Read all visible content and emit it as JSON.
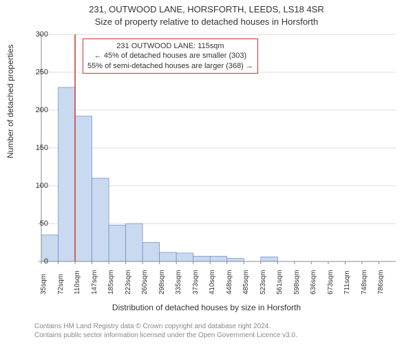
{
  "title_line1": "231, OUTWOOD LANE, HORSFORTH, LEEDS, LS18 4SR",
  "title_line2": "Size of property relative to detached houses in Horsforth",
  "ylabel": "Number of detached properties",
  "xlabel": "Distribution of detached houses by size in Horsforth",
  "attribution_line1": "Contains HM Land Registry data © Crown copyright and database right 2024.",
  "attribution_line2": "Contains public sector information licensed under the Open Government Licence v3.0.",
  "annotation": {
    "line1": "231 OUTWOOD LANE: 115sqm",
    "line2": "← 45% of detached houses are smaller (303)",
    "line3": "55% of semi-detached houses are larger (368) →"
  },
  "chart": {
    "type": "histogram",
    "ylim": [
      0,
      300
    ],
    "yticks": [
      0,
      50,
      100,
      150,
      200,
      250,
      300
    ],
    "xticks": [
      "35sqm",
      "72sqm",
      "110sqm",
      "147sqm",
      "185sqm",
      "223sqm",
      "260sqm",
      "298sqm",
      "335sqm",
      "373sqm",
      "410sqm",
      "448sqm",
      "485sqm",
      "523sqm",
      "561sqm",
      "598sqm",
      "636sqm",
      "673sqm",
      "711sqm",
      "748sqm",
      "786sqm"
    ],
    "values": [
      35,
      230,
      192,
      110,
      48,
      50,
      25,
      12,
      11,
      7,
      7,
      4,
      0,
      6,
      0,
      0,
      0,
      0,
      0,
      0,
      0
    ],
    "bar_fill": "#c9d9f0",
    "bar_stroke": "#6b88c4",
    "highlight_line_color": "#cc3333",
    "highlight_index": 2,
    "axis_color": "#888888",
    "grid_color": "#dddddd",
    "background_color": "#ffffff",
    "title_fontsize": 13,
    "label_fontsize": 12,
    "tick_fontsize": 11,
    "bar_width_ratio": 1.0
  }
}
